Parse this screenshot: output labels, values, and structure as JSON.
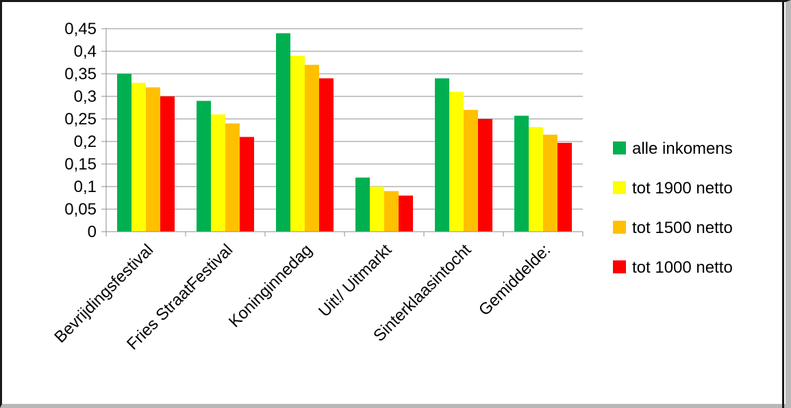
{
  "chart_data": {
    "type": "bar",
    "categories": [
      "Bevrijdingsfestival",
      "Fries StraatFestival",
      "Koninginnedag",
      "Uit!/ Uitmarkt",
      "Sinterklaasintocht",
      "Gemiddelde:"
    ],
    "series": [
      {
        "name": "alle inkomens",
        "color": "#00b050",
        "values": [
          0.35,
          0.29,
          0.44,
          0.12,
          0.34,
          0.257
        ]
      },
      {
        "name": "tot 1900 netto",
        "color": "#ffff00",
        "values": [
          0.33,
          0.26,
          0.39,
          0.1,
          0.31,
          0.232
        ]
      },
      {
        "name": "tot 1500 netto",
        "color": "#ffc000",
        "values": [
          0.32,
          0.24,
          0.37,
          0.09,
          0.27,
          0.215
        ]
      },
      {
        "name": "tot 1000 netto",
        "color": "#ff0000",
        "values": [
          0.3,
          0.21,
          0.34,
          0.08,
          0.25,
          0.197
        ]
      }
    ],
    "ylim": [
      0,
      0.45
    ],
    "yticks": [
      "0",
      "0,05",
      "0,1",
      "0,15",
      "0,2",
      "0,25",
      "0,3",
      "0,35",
      "0,4",
      "0,45"
    ],
    "grid": true,
    "legend": "right"
  }
}
